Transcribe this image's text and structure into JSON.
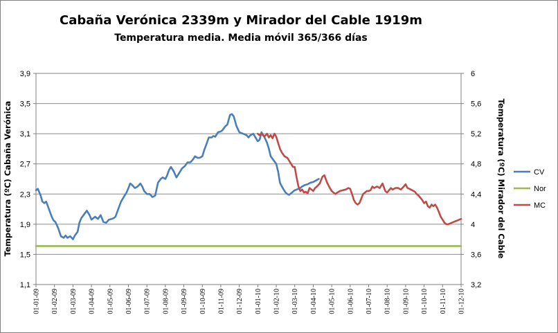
{
  "chart_data": {
    "type": "line",
    "title": "Cabaña Verónica 2339m  y Mirador del Cable 1919m",
    "subtitle": "Temperatura media. Media móvil 365/366 días",
    "ylabel": "Temperatura (ºC) Cabaña Verónica",
    "ylabel_right": "Temperatura (ºC) Mirador del Cable",
    "ylim": [
      1.1,
      3.9
    ],
    "yticks": [
      "3,9",
      "3,5",
      "3,1",
      "2,7",
      "2,3",
      "1,9",
      "1,5",
      "1,1"
    ],
    "ylim_right": [
      3.2,
      6.0
    ],
    "yticks_right": [
      "6",
      "5,6",
      "5,2",
      "4,8",
      "4,4",
      "4",
      "3,6",
      "3,2"
    ],
    "x_labels": [
      "01-01-09",
      "01-02-09",
      "01-03-09",
      "01-04-09",
      "01-05-09",
      "01-06-09",
      "01-07-09",
      "01-08-09",
      "01-09-09",
      "01-10-09",
      "01-11-09",
      "01-12-09",
      "01-01-10",
      "01-02-10",
      "01-03-10",
      "01-04-10",
      "01-05-10",
      "01-06-10",
      "01-07-10",
      "01-08-10",
      "01-09-10",
      "01-10-10",
      "01-11-10",
      "01-12-10"
    ],
    "grid": true,
    "legend_position": "right",
    "series": [
      {
        "name": "CV",
        "axis": "left",
        "color": "#4a7ebb",
        "x": [
          0,
          0.1,
          0.25,
          0.35,
          0.45,
          0.55,
          0.7,
          0.85,
          0.95,
          1.05,
          1.2,
          1.35,
          1.5,
          1.6,
          1.7,
          1.85,
          2.0,
          2.1,
          2.25,
          2.35,
          2.45,
          2.6,
          2.75,
          2.9,
          3.0,
          3.1,
          3.2,
          3.35,
          3.5,
          3.65,
          3.8,
          3.95,
          4.1,
          4.2,
          4.3,
          4.45,
          4.6,
          4.75,
          4.9,
          5.0,
          5.1,
          5.2,
          5.35,
          5.5,
          5.65,
          5.75,
          5.85,
          6.0,
          6.15,
          6.3,
          6.45,
          6.6,
          6.75,
          6.85,
          7.0,
          7.1,
          7.2,
          7.3,
          7.45,
          7.6,
          7.75,
          7.9,
          8.05,
          8.2,
          8.35,
          8.5,
          8.6,
          8.75,
          8.85,
          9.0,
          9.1,
          9.25,
          9.35,
          9.5,
          9.6,
          9.7,
          9.85,
          10.0,
          10.1,
          10.25,
          10.35,
          10.5,
          10.6,
          10.7,
          10.85,
          11.0,
          11.1,
          11.2,
          11.3,
          11.4,
          11.5,
          11.6,
          11.75,
          11.9,
          12.0,
          12.1,
          12.2,
          12.35,
          12.5,
          12.6,
          12.7,
          12.85,
          13.0,
          13.1,
          13.2,
          13.3,
          13.4,
          13.5,
          13.6,
          13.7,
          13.85,
          14.0,
          14.1,
          14.2,
          14.3,
          14.4,
          14.55,
          14.7,
          14.85,
          15.0,
          15.15,
          15.3
        ],
        "y": [
          2.35,
          2.37,
          2.28,
          2.2,
          2.18,
          2.2,
          2.1,
          2.0,
          1.95,
          1.93,
          1.85,
          1.74,
          1.72,
          1.75,
          1.72,
          1.74,
          1.7,
          1.75,
          1.8,
          1.92,
          1.98,
          2.03,
          2.08,
          2.02,
          1.96,
          1.98,
          2.0,
          1.97,
          2.02,
          1.93,
          1.92,
          1.96,
          1.97,
          1.98,
          2.0,
          2.1,
          2.2,
          2.26,
          2.32,
          2.38,
          2.44,
          2.42,
          2.38,
          2.4,
          2.44,
          2.4,
          2.34,
          2.3,
          2.3,
          2.26,
          2.28,
          2.45,
          2.5,
          2.52,
          2.5,
          2.55,
          2.62,
          2.66,
          2.6,
          2.52,
          2.58,
          2.64,
          2.67,
          2.72,
          2.72,
          2.76,
          2.8,
          2.78,
          2.78,
          2.8,
          2.88,
          2.98,
          3.05,
          3.05,
          3.07,
          3.06,
          3.12,
          3.13,
          3.15,
          3.2,
          3.22,
          3.35,
          3.36,
          3.33,
          3.2,
          3.12,
          3.11,
          3.1,
          3.09,
          3.08,
          3.05,
          3.08,
          3.1,
          3.04,
          3.0,
          3.02,
          3.12,
          3.06,
          2.98,
          2.9,
          2.8,
          2.75,
          2.7,
          2.6,
          2.45,
          2.4,
          2.36,
          2.32,
          2.3,
          2.29,
          2.32,
          2.35,
          2.36,
          2.37,
          2.38,
          2.4,
          2.42,
          2.43,
          2.45,
          2.46,
          2.48,
          2.5
        ]
      },
      {
        "name": "Nor",
        "axis": "left",
        "color": "#98b954",
        "x": [
          0,
          23
        ],
        "y": [
          1.61,
          1.61
        ]
      },
      {
        "name": "MC",
        "axis": "right",
        "color": "#be4b48",
        "x": [
          12.0,
          12.1,
          12.2,
          12.35,
          12.5,
          12.6,
          12.7,
          12.8,
          12.9,
          13.0,
          13.1,
          13.2,
          13.3,
          13.45,
          13.6,
          13.75,
          13.9,
          14.0,
          14.1,
          14.2,
          14.3,
          14.4,
          14.5,
          14.6,
          14.7,
          14.8,
          14.9,
          15.0,
          15.1,
          15.2,
          15.35,
          15.5,
          15.6,
          15.75,
          15.9,
          16.0,
          16.1,
          16.2,
          16.3,
          16.45,
          16.6,
          16.75,
          16.9,
          17.0,
          17.1,
          17.2,
          17.3,
          17.4,
          17.5,
          17.6,
          17.7,
          17.8,
          17.9,
          18.0,
          18.1,
          18.2,
          18.3,
          18.45,
          18.6,
          18.75,
          18.9,
          19.0,
          19.1,
          19.2,
          19.3,
          19.45,
          19.6,
          19.75,
          19.9,
          20.0,
          20.1,
          20.2,
          20.35,
          20.5,
          20.6,
          20.7,
          20.8,
          20.9,
          21.0,
          21.1,
          21.2,
          21.3,
          21.4,
          21.5,
          21.6,
          21.7,
          21.8,
          21.9,
          22.0,
          22.1,
          22.2,
          22.3,
          22.4,
          22.5,
          22.6,
          22.7,
          22.8,
          22.9,
          23.0
        ],
        "y": [
          5.2,
          5.18,
          5.2,
          5.16,
          5.2,
          5.15,
          5.18,
          5.14,
          5.2,
          5.16,
          5.08,
          5.0,
          4.95,
          4.9,
          4.88,
          4.82,
          4.76,
          4.76,
          4.62,
          4.5,
          4.44,
          4.46,
          4.42,
          4.43,
          4.41,
          4.48,
          4.46,
          4.44,
          4.48,
          4.5,
          4.54,
          4.63,
          4.65,
          4.55,
          4.48,
          4.44,
          4.42,
          4.4,
          4.42,
          4.44,
          4.45,
          4.46,
          4.48,
          4.47,
          4.4,
          4.32,
          4.28,
          4.26,
          4.28,
          4.34,
          4.4,
          4.42,
          4.44,
          4.44,
          4.45,
          4.5,
          4.48,
          4.5,
          4.48,
          4.54,
          4.44,
          4.42,
          4.45,
          4.48,
          4.46,
          4.48,
          4.48,
          4.46,
          4.5,
          4.53,
          4.48,
          4.47,
          4.45,
          4.43,
          4.4,
          4.38,
          4.35,
          4.32,
          4.28,
          4.3,
          4.24,
          4.22,
          4.26,
          4.24,
          4.26,
          4.22,
          4.16,
          4.1,
          4.06,
          4.02,
          4.0,
          4.0,
          4.01,
          4.02,
          4.03,
          4.04,
          4.05,
          4.06,
          4.07
        ]
      }
    ]
  }
}
